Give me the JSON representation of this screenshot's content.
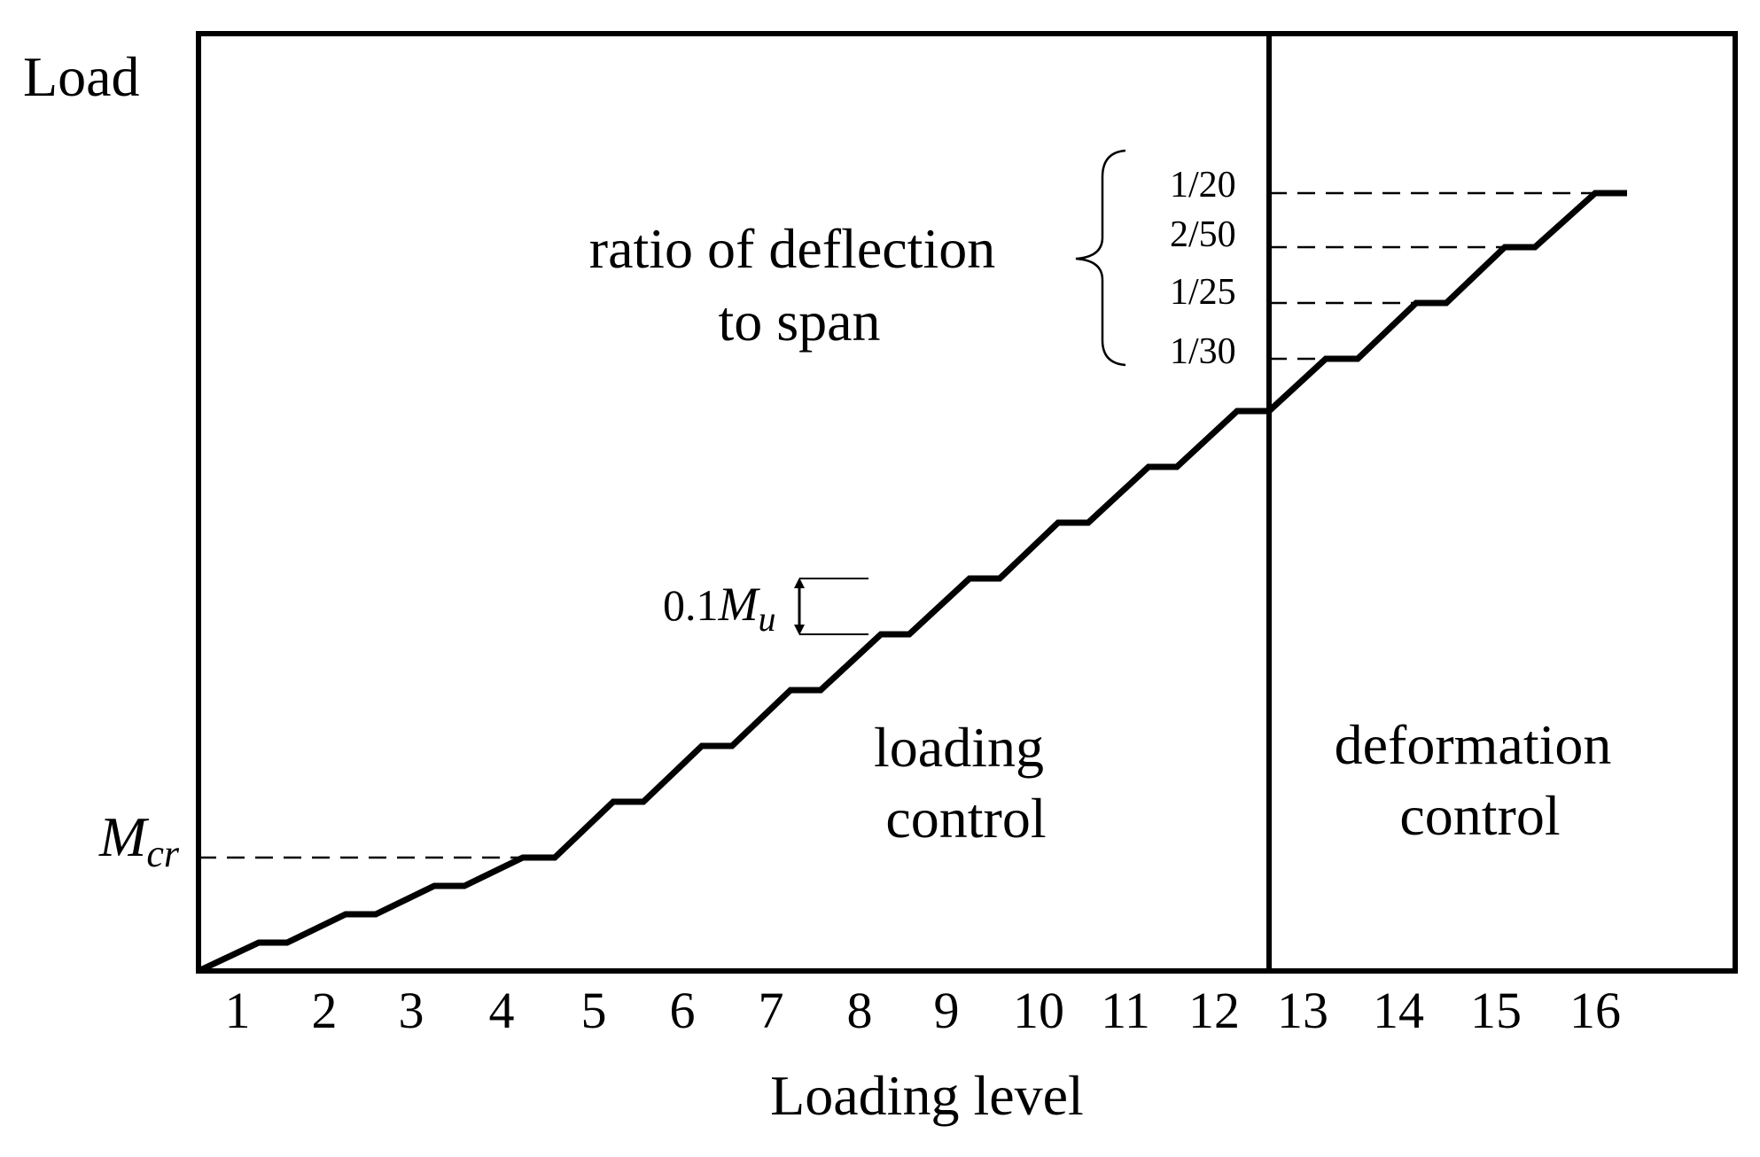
{
  "diagram": {
    "y_axis_label": "Load",
    "x_axis_label": "Loading level",
    "levels": [
      "1",
      "2",
      "3",
      "4",
      "5",
      "6",
      "7",
      "8",
      "9",
      "10",
      "11",
      "12",
      "13",
      "14",
      "15",
      "16"
    ],
    "cracking_moment_label": {
      "base": "M",
      "sub": "cr"
    },
    "step_increment_label": {
      "prefix": "0.1",
      "base": "M",
      "sub": "u"
    },
    "region_loading_control": [
      "loading",
      "control"
    ],
    "region_deformation_control": [
      "deformation",
      "control"
    ],
    "ratio_label": [
      "ratio of deflection",
      "to span"
    ],
    "ratios": [
      "1/20",
      "2/50",
      "1/25",
      "1/30"
    ],
    "colors": {
      "line": "#000000",
      "background": "#ffffff"
    }
  }
}
